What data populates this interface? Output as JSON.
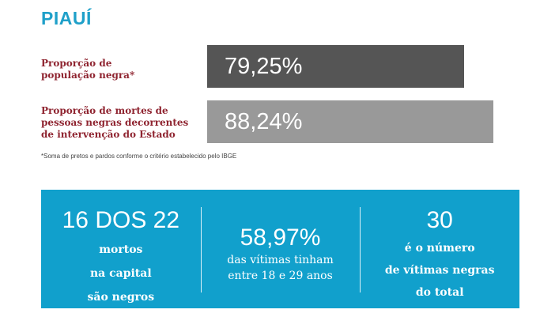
{
  "header": {
    "title": "PIAUÍ"
  },
  "colors": {
    "title": "#1fa0c9",
    "label": "#8f2430",
    "bar_1": "#555555",
    "bar_2": "#999999",
    "panel": "#11a0cc"
  },
  "chart_data": {
    "type": "bar",
    "orientation": "horizontal",
    "title": "PIAUÍ",
    "categories": [
      "Proporção de população negra*",
      "Proporção de mortes de pessoas negras decorrentes de intervenção do Estado"
    ],
    "values": [
      79.25,
      88.24
    ],
    "value_labels": [
      "79,25%",
      "88,24%"
    ],
    "unit": "%",
    "xlim": [
      0,
      100
    ]
  },
  "bars": [
    {
      "label_lines": [
        "Proporção de",
        "população negra*"
      ],
      "value_label": "79,25%"
    },
    {
      "label_lines": [
        "Proporção de mortes de",
        "pessoas negras decorrentes",
        "de intervenção do Estado"
      ],
      "value_label": "88,24%"
    }
  ],
  "footnote": "*Soma de pretos e pardos conforme o critério estabelecido pelo IBGE",
  "stats": [
    {
      "headline": "16 DOS 22",
      "lines": [
        "mortos",
        "na capital",
        "são negros"
      ]
    },
    {
      "headline": "58,97%",
      "lines": [
        "das vítimas tinham",
        "entre 18 e 29 anos"
      ]
    },
    {
      "headline": "30",
      "lines": [
        "é o número",
        "de vítimas negras",
        "do total"
      ]
    }
  ]
}
